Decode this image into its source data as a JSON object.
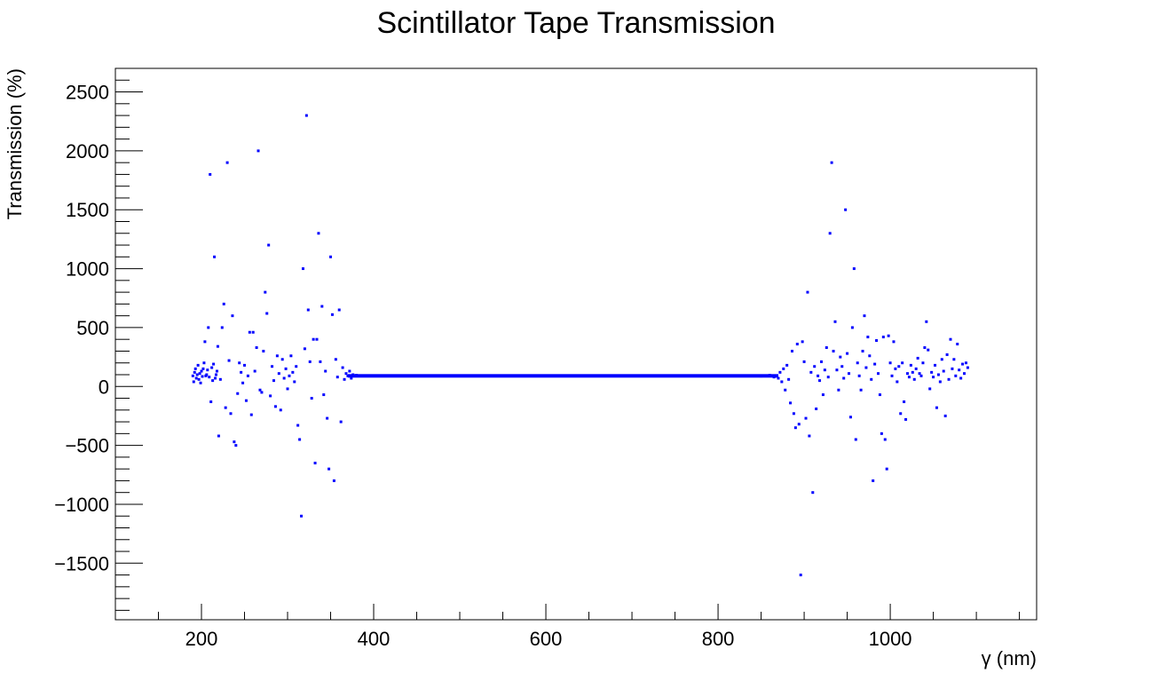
{
  "chart_data": {
    "type": "scatter",
    "title": "Scintillator Tape Transmission",
    "xlabel": "γ (nm)",
    "ylabel": "Transmission (%)",
    "xlim": [
      100,
      1170
    ],
    "ylim": [
      -1980,
      2700
    ],
    "x_ticks": [
      200,
      400,
      600,
      800,
      1000
    ],
    "x_tick_labels": [
      "200",
      "400",
      "600",
      "800",
      "1000"
    ],
    "y_ticks": [
      -1500,
      -1000,
      -500,
      0,
      500,
      1000,
      1500,
      2000,
      2500
    ],
    "y_tick_labels": [
      "−1500",
      "−1000",
      "−500",
      "0",
      "500",
      "1000",
      "1500",
      "2000",
      "2500"
    ],
    "grid": false,
    "legend": "none",
    "marker_color": "#0000ff",
    "series": [
      {
        "points": [
          [
            190,
            90
          ],
          [
            191,
            40
          ],
          [
            192,
            120
          ],
          [
            193,
            150
          ],
          [
            194,
            70
          ],
          [
            195,
            100
          ],
          [
            196,
            180
          ],
          [
            197,
            60
          ],
          [
            198,
            110
          ],
          [
            199,
            30
          ],
          [
            200,
            130
          ],
          [
            201,
            85
          ],
          [
            202,
            150
          ],
          [
            203,
            200
          ],
          [
            204,
            380
          ],
          [
            205,
            90
          ],
          [
            206,
            100
          ],
          [
            207,
            140
          ],
          [
            208,
            500
          ],
          [
            209,
            80
          ],
          [
            210,
            1800
          ],
          [
            211,
            -130
          ],
          [
            212,
            160
          ],
          [
            213,
            50
          ],
          [
            214,
            190
          ],
          [
            215,
            1100
          ],
          [
            216,
            70
          ],
          [
            217,
            100
          ],
          [
            218,
            130
          ],
          [
            219,
            340
          ],
          [
            220,
            -420
          ],
          [
            222,
            60
          ],
          [
            224,
            500
          ],
          [
            226,
            700
          ],
          [
            228,
            -180
          ],
          [
            230,
            1900
          ],
          [
            232,
            220
          ],
          [
            234,
            -230
          ],
          [
            236,
            600
          ],
          [
            238,
            -470
          ],
          [
            240,
            -500
          ],
          [
            242,
            -60
          ],
          [
            244,
            200
          ],
          [
            246,
            120
          ],
          [
            248,
            30
          ],
          [
            250,
            180
          ],
          [
            252,
            -120
          ],
          [
            254,
            90
          ],
          [
            256,
            460
          ],
          [
            258,
            -240
          ],
          [
            260,
            460
          ],
          [
            262,
            130
          ],
          [
            264,
            330
          ],
          [
            266,
            2000
          ],
          [
            268,
            -30
          ],
          [
            270,
            -50
          ],
          [
            272,
            300
          ],
          [
            274,
            800
          ],
          [
            276,
            620
          ],
          [
            278,
            1200
          ],
          [
            280,
            -80
          ],
          [
            282,
            170
          ],
          [
            284,
            50
          ],
          [
            286,
            -170
          ],
          [
            288,
            260
          ],
          [
            290,
            110
          ],
          [
            292,
            -200
          ],
          [
            294,
            230
          ],
          [
            296,
            70
          ],
          [
            298,
            150
          ],
          [
            300,
            -20
          ],
          [
            302,
            90
          ],
          [
            304,
            260
          ],
          [
            306,
            120
          ],
          [
            308,
            40
          ],
          [
            310,
            170
          ],
          [
            312,
            -330
          ],
          [
            314,
            -450
          ],
          [
            316,
            -1100
          ],
          [
            318,
            1000
          ],
          [
            320,
            320
          ],
          [
            322,
            2300
          ],
          [
            324,
            650
          ],
          [
            326,
            210
          ],
          [
            328,
            -100
          ],
          [
            330,
            400
          ],
          [
            332,
            -650
          ],
          [
            334,
            400
          ],
          [
            336,
            1300
          ],
          [
            338,
            210
          ],
          [
            340,
            680
          ],
          [
            342,
            -70
          ],
          [
            344,
            130
          ],
          [
            346,
            -270
          ],
          [
            348,
            -700
          ],
          [
            350,
            1100
          ],
          [
            352,
            610
          ],
          [
            354,
            -800
          ],
          [
            356,
            230
          ],
          [
            358,
            80
          ],
          [
            360,
            650
          ],
          [
            362,
            -300
          ],
          [
            364,
            160
          ],
          [
            366,
            60
          ],
          [
            368,
            110
          ],
          [
            370,
            90
          ],
          [
            372,
            130
          ],
          [
            374,
            70
          ],
          [
            376,
            100
          ],
          [
            380,
            95
          ],
          [
            385,
            92
          ],
          [
            390,
            90
          ],
          [
            395,
            92
          ],
          [
            400,
            91
          ],
          [
            450,
            90
          ],
          [
            500,
            90
          ],
          [
            550,
            90
          ],
          [
            600,
            90
          ],
          [
            650,
            90
          ],
          [
            700,
            90
          ],
          [
            750,
            90
          ],
          [
            800,
            90
          ],
          [
            820,
            92
          ],
          [
            840,
            90
          ],
          [
            850,
            88
          ],
          [
            860,
            95
          ],
          [
            865,
            80
          ],
          [
            870,
            70
          ],
          [
            872,
            120
          ],
          [
            874,
            40
          ],
          [
            876,
            150
          ],
          [
            878,
            -30
          ],
          [
            880,
            180
          ],
          [
            882,
            60
          ],
          [
            884,
            -140
          ],
          [
            886,
            300
          ],
          [
            888,
            -230
          ],
          [
            890,
            -350
          ],
          [
            892,
            360
          ],
          [
            894,
            -320
          ],
          [
            896,
            -1600
          ],
          [
            898,
            380
          ],
          [
            900,
            210
          ],
          [
            902,
            -270
          ],
          [
            904,
            800
          ],
          [
            906,
            -420
          ],
          [
            908,
            120
          ],
          [
            910,
            -900
          ],
          [
            912,
            170
          ],
          [
            914,
            -190
          ],
          [
            916,
            90
          ],
          [
            918,
            50
          ],
          [
            920,
            210
          ],
          [
            922,
            -70
          ],
          [
            924,
            140
          ],
          [
            926,
            330
          ],
          [
            928,
            80
          ],
          [
            930,
            1300
          ],
          [
            932,
            1900
          ],
          [
            934,
            300
          ],
          [
            936,
            550
          ],
          [
            938,
            140
          ],
          [
            940,
            -30
          ],
          [
            942,
            250
          ],
          [
            944,
            170
          ],
          [
            946,
            70
          ],
          [
            948,
            1500
          ],
          [
            950,
            280
          ],
          [
            952,
            110
          ],
          [
            954,
            -260
          ],
          [
            956,
            500
          ],
          [
            958,
            1000
          ],
          [
            960,
            -450
          ],
          [
            962,
            200
          ],
          [
            964,
            90
          ],
          [
            966,
            -30
          ],
          [
            968,
            300
          ],
          [
            970,
            600
          ],
          [
            972,
            160
          ],
          [
            974,
            420
          ],
          [
            976,
            260
          ],
          [
            978,
            60
          ],
          [
            980,
            -800
          ],
          [
            982,
            190
          ],
          [
            984,
            390
          ],
          [
            986,
            110
          ],
          [
            988,
            -70
          ],
          [
            990,
            -400
          ],
          [
            992,
            420
          ],
          [
            994,
            -450
          ],
          [
            996,
            -700
          ],
          [
            998,
            430
          ],
          [
            1000,
            200
          ],
          [
            1002,
            90
          ],
          [
            1004,
            380
          ],
          [
            1006,
            150
          ],
          [
            1008,
            40
          ],
          [
            1010,
            170
          ],
          [
            1012,
            -230
          ],
          [
            1014,
            200
          ],
          [
            1016,
            -130
          ],
          [
            1018,
            -280
          ],
          [
            1020,
            110
          ],
          [
            1022,
            80
          ],
          [
            1024,
            180
          ],
          [
            1026,
            120
          ],
          [
            1028,
            60
          ],
          [
            1030,
            150
          ],
          [
            1032,
            240
          ],
          [
            1034,
            110
          ],
          [
            1036,
            90
          ],
          [
            1038,
            200
          ],
          [
            1040,
            330
          ],
          [
            1042,
            550
          ],
          [
            1044,
            310
          ],
          [
            1046,
            -20
          ],
          [
            1048,
            120
          ],
          [
            1050,
            80
          ],
          [
            1052,
            180
          ],
          [
            1054,
            -180
          ],
          [
            1056,
            100
          ],
          [
            1058,
            40
          ],
          [
            1060,
            230
          ],
          [
            1062,
            130
          ],
          [
            1064,
            -250
          ],
          [
            1066,
            270
          ],
          [
            1068,
            60
          ],
          [
            1070,
            400
          ],
          [
            1072,
            150
          ],
          [
            1074,
            230
          ],
          [
            1076,
            90
          ],
          [
            1078,
            360
          ],
          [
            1080,
            140
          ],
          [
            1082,
            70
          ],
          [
            1084,
            190
          ],
          [
            1086,
            110
          ],
          [
            1088,
            200
          ],
          [
            1090,
            160
          ]
        ]
      }
    ]
  }
}
